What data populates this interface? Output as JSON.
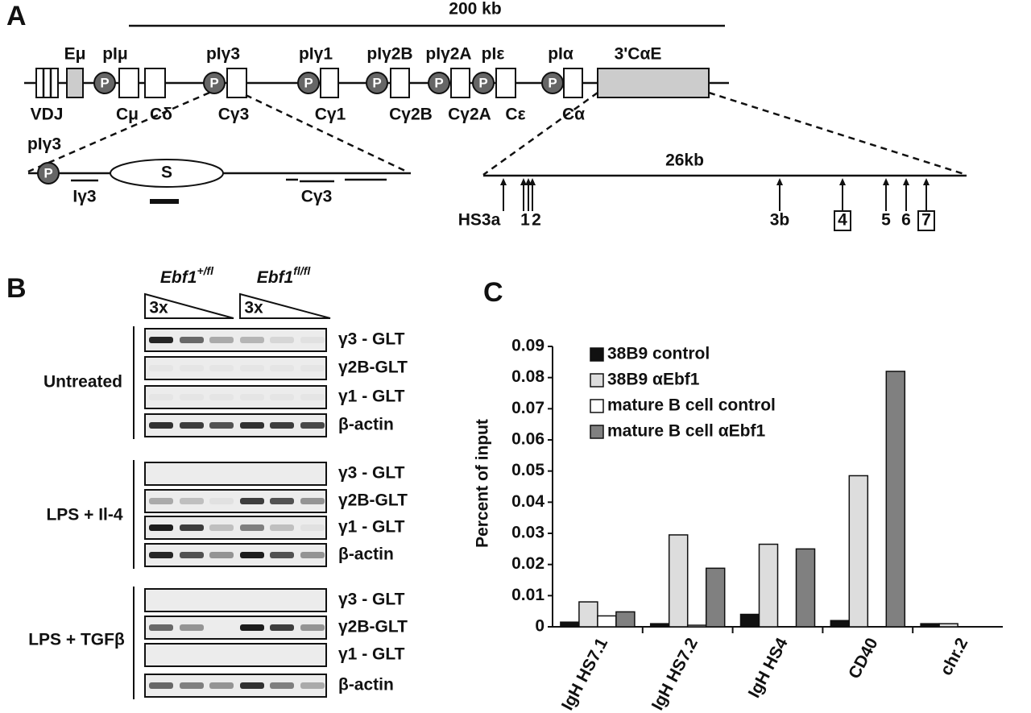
{
  "panel_a": {
    "label": "A",
    "scale": "200 kb",
    "top_labels": [
      "Eμ",
      "pIμ",
      "pIγ3",
      "pIγ1",
      "pIγ2B",
      "pIγ2A",
      "pIε",
      "pIα",
      "3'CαE"
    ],
    "bottom_labels": [
      "VDJ",
      "Cμ",
      "Cδ",
      "Cγ3",
      "Cγ1",
      "Cγ2B",
      "Cγ2A",
      "Cε",
      "Cα"
    ],
    "promoter": "P",
    "zoom_left": {
      "title": "pIγ3",
      "switch": "S",
      "exon": "Iγ3",
      "constant": "Cγ3"
    },
    "zoom_right": {
      "scale": "26kb",
      "sites": [
        "HS3a",
        "1",
        "2",
        "3b",
        "4",
        "5",
        "6",
        "7"
      ]
    }
  },
  "panel_b": {
    "label": "B",
    "genotypes": [
      {
        "gene": "Ebf1",
        "allele": "+/fl"
      },
      {
        "gene": "Ebf1",
        "allele": "fl/fl"
      }
    ],
    "dilution": "3x",
    "groups": [
      {
        "treatment": "Untreated",
        "rows": [
          "γ3 - GLT",
          "γ2B-GLT",
          "γ1 - GLT",
          "β-actin"
        ]
      },
      {
        "treatment": "LPS + Il-4",
        "rows": [
          "γ3 - GLT",
          "γ2B-GLT",
          "γ1 - GLT",
          "β-actin"
        ]
      },
      {
        "treatment": "LPS + TGFβ",
        "rows": [
          "γ3 - GLT",
          "γ2B-GLT",
          "γ1 - GLT",
          "β-actin"
        ]
      }
    ]
  },
  "chart_data": {
    "type": "bar",
    "label": "C",
    "y_label": "Percent of input",
    "categories": [
      "IgH HS7.1",
      "IgH HS7.2",
      "IgH HS4",
      "CD40",
      "chr.2"
    ],
    "series": [
      {
        "name": "38B9 control",
        "color": "#111111",
        "values": [
          0.0015,
          0.001,
          0.004,
          0.002,
          0.001
        ]
      },
      {
        "name": "38B9 αEbf1",
        "color": "#dddddd",
        "values": [
          0.008,
          0.0295,
          0.0265,
          0.0485,
          0.001
        ]
      },
      {
        "name": "mature B cell control",
        "color": "#ffffff",
        "values": [
          0.0035,
          0.0005,
          0,
          0,
          0
        ]
      },
      {
        "name": "mature B cell αEbf1",
        "color": "#808080",
        "values": [
          0.0048,
          0.0188,
          0.025,
          0.082,
          0
        ]
      }
    ],
    "ylim": [
      0,
      0.09
    ],
    "yticks": [
      0,
      0.01,
      0.02,
      0.03,
      0.04,
      0.05,
      0.06,
      0.07,
      0.08,
      0.09
    ]
  }
}
